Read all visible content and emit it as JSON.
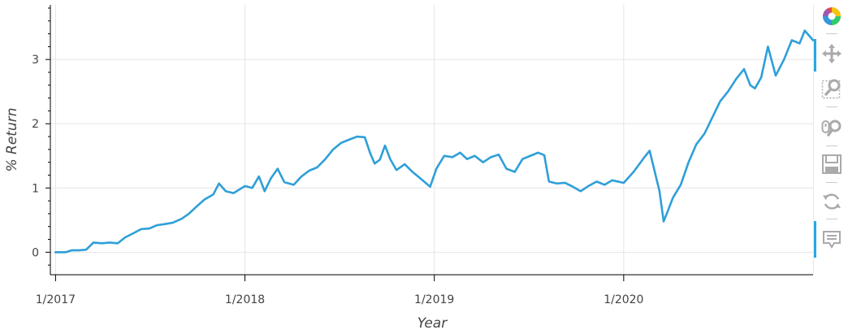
{
  "chart_data": {
    "type": "line",
    "title": "",
    "xlabel": "Year",
    "ylabel": "% Return",
    "x_ticks": [
      "1/2017",
      "1/2018",
      "1/2019",
      "1/2020"
    ],
    "y_ticks": [
      0,
      1,
      2,
      3
    ],
    "xlim": [
      "2016-12-22",
      "2020-12-31"
    ],
    "ylim": [
      -0.35,
      3.85
    ],
    "grid": true,
    "line_color": "#2f9fd8",
    "series": [
      {
        "values": [
          [
            "2017-01-01",
            0.0
          ],
          [
            "2017-01-20",
            0.0
          ],
          [
            "2017-02-01",
            0.03
          ],
          [
            "2017-02-15",
            0.03
          ],
          [
            "2017-03-01",
            0.04
          ],
          [
            "2017-03-15",
            0.15
          ],
          [
            "2017-04-01",
            0.14
          ],
          [
            "2017-04-15",
            0.15
          ],
          [
            "2017-05-01",
            0.14
          ],
          [
            "2017-05-15",
            0.23
          ],
          [
            "2017-06-01",
            0.3
          ],
          [
            "2017-06-15",
            0.36
          ],
          [
            "2017-07-01",
            0.37
          ],
          [
            "2017-07-15",
            0.42
          ],
          [
            "2017-08-01",
            0.44
          ],
          [
            "2017-08-15",
            0.46
          ],
          [
            "2017-09-01",
            0.52
          ],
          [
            "2017-09-15",
            0.6
          ],
          [
            "2017-10-01",
            0.72
          ],
          [
            "2017-10-15",
            0.82
          ],
          [
            "2017-11-01",
            0.9
          ],
          [
            "2017-11-12",
            1.07
          ],
          [
            "2017-11-25",
            0.95
          ],
          [
            "2017-12-10",
            0.92
          ],
          [
            "2018-01-01",
            1.03
          ],
          [
            "2018-01-15",
            1.0
          ],
          [
            "2018-01-28",
            1.18
          ],
          [
            "2018-02-08",
            0.95
          ],
          [
            "2018-02-20",
            1.15
          ],
          [
            "2018-03-05",
            1.3
          ],
          [
            "2018-03-18",
            1.09
          ],
          [
            "2018-04-05",
            1.05
          ],
          [
            "2018-04-20",
            1.18
          ],
          [
            "2018-05-05",
            1.27
          ],
          [
            "2018-05-20",
            1.32
          ],
          [
            "2018-06-05",
            1.45
          ],
          [
            "2018-06-20",
            1.6
          ],
          [
            "2018-07-05",
            1.7
          ],
          [
            "2018-07-20",
            1.75
          ],
          [
            "2018-08-05",
            1.8
          ],
          [
            "2018-08-20",
            1.79
          ],
          [
            "2018-08-30",
            1.55
          ],
          [
            "2018-09-08",
            1.38
          ],
          [
            "2018-09-18",
            1.44
          ],
          [
            "2018-09-28",
            1.66
          ],
          [
            "2018-10-08",
            1.45
          ],
          [
            "2018-10-20",
            1.28
          ],
          [
            "2018-11-05",
            1.37
          ],
          [
            "2018-11-20",
            1.25
          ],
          [
            "2018-12-05",
            1.15
          ],
          [
            "2018-12-24",
            1.02
          ],
          [
            "2019-01-05",
            1.3
          ],
          [
            "2019-01-20",
            1.5
          ],
          [
            "2019-02-05",
            1.48
          ],
          [
            "2019-02-20",
            1.55
          ],
          [
            "2019-03-05",
            1.45
          ],
          [
            "2019-03-20",
            1.5
          ],
          [
            "2019-04-05",
            1.4
          ],
          [
            "2019-04-20",
            1.48
          ],
          [
            "2019-05-05",
            1.52
          ],
          [
            "2019-05-20",
            1.3
          ],
          [
            "2019-06-05",
            1.25
          ],
          [
            "2019-06-20",
            1.45
          ],
          [
            "2019-07-05",
            1.5
          ],
          [
            "2019-07-20",
            1.55
          ],
          [
            "2019-08-01",
            1.51
          ],
          [
            "2019-08-10",
            1.1
          ],
          [
            "2019-08-25",
            1.07
          ],
          [
            "2019-09-10",
            1.08
          ],
          [
            "2019-09-25",
            1.02
          ],
          [
            "2019-10-10",
            0.95
          ],
          [
            "2019-10-25",
            1.03
          ],
          [
            "2019-11-10",
            1.1
          ],
          [
            "2019-11-25",
            1.05
          ],
          [
            "2019-12-10",
            1.12
          ],
          [
            "2020-01-01",
            1.08
          ],
          [
            "2020-01-20",
            1.25
          ],
          [
            "2020-02-10",
            1.48
          ],
          [
            "2020-02-20",
            1.58
          ],
          [
            "2020-03-01",
            1.25
          ],
          [
            "2020-03-10",
            0.95
          ],
          [
            "2020-03-18",
            0.48
          ],
          [
            "2020-03-25",
            0.62
          ],
          [
            "2020-04-05",
            0.85
          ],
          [
            "2020-04-20",
            1.05
          ],
          [
            "2020-05-05",
            1.4
          ],
          [
            "2020-05-20",
            1.68
          ],
          [
            "2020-06-05",
            1.85
          ],
          [
            "2020-06-20",
            2.1
          ],
          [
            "2020-07-05",
            2.35
          ],
          [
            "2020-07-20",
            2.5
          ],
          [
            "2020-08-05",
            2.7
          ],
          [
            "2020-08-20",
            2.85
          ],
          [
            "2020-09-01",
            2.6
          ],
          [
            "2020-09-10",
            2.55
          ],
          [
            "2020-09-22",
            2.72
          ],
          [
            "2020-10-05",
            3.2
          ],
          [
            "2020-10-20",
            2.75
          ],
          [
            "2020-11-05",
            3.0
          ],
          [
            "2020-11-20",
            3.3
          ],
          [
            "2020-12-05",
            3.25
          ],
          [
            "2020-12-15",
            3.45
          ],
          [
            "2020-12-31",
            3.3
          ]
        ]
      }
    ]
  },
  "toolbar": {
    "logo": "bokeh-logo-icon",
    "tools": [
      "pan-icon",
      "box-zoom-icon",
      "wheel-zoom-icon",
      "save-icon",
      "reset-icon",
      "hover-icon"
    ],
    "active_color": "#26aae1",
    "icon_color": "#aaaaaa"
  }
}
